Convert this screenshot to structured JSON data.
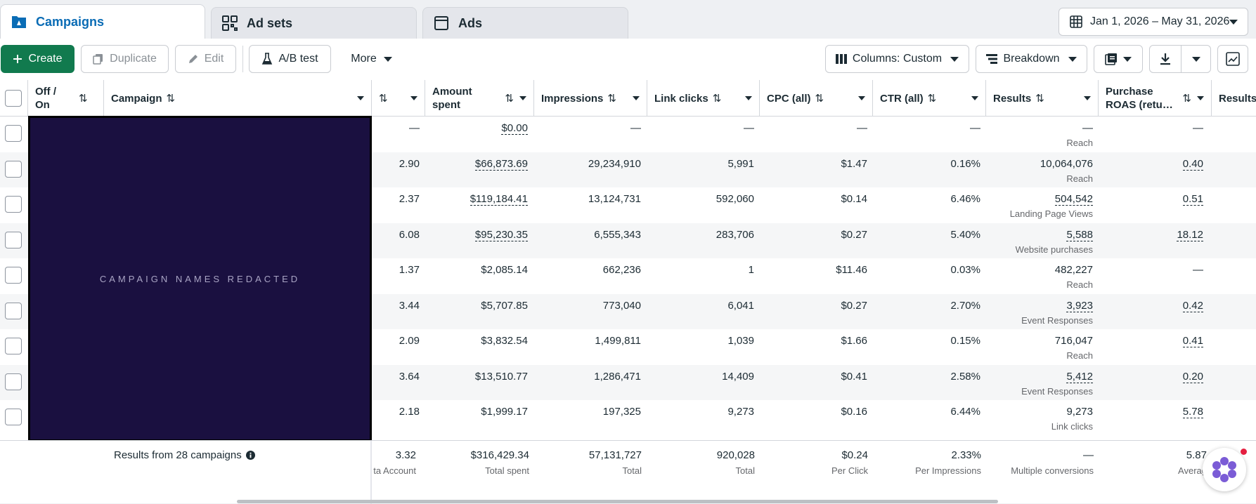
{
  "tabs": [
    {
      "label": "Campaigns",
      "icon": "folder-flag-icon",
      "active": true
    },
    {
      "label": "Ad sets",
      "icon": "grid-icon",
      "active": false
    },
    {
      "label": "Ads",
      "icon": "ad-window-icon",
      "active": false
    }
  ],
  "date_range": "Jan 1, 2026 – May 31, 2026",
  "toolbar": {
    "create": "Create",
    "duplicate": "Duplicate",
    "edit": "Edit",
    "ab_test": "A/B test",
    "more": "More",
    "columns": "Columns: Custom",
    "breakdown": "Breakdown"
  },
  "header": {
    "off_on": "Off / On",
    "campaign": "Campaign",
    "amount_spent": "Amount spent",
    "impressions": "Impressions",
    "link_clicks": "Link clicks",
    "cpc": "CPC (all)",
    "ctr": "CTR (all)",
    "results": "Results",
    "roas": "Purchase ROAS (retu…",
    "results_cut": "Results"
  },
  "redacted_label": "CAMPAIGN NAMES REDACTED",
  "rows": [
    {
      "c1": "—",
      "spent": "$0.00",
      "impr": "—",
      "clicks": "—",
      "cpc": "—",
      "ctr": "—",
      "results": "—",
      "results_sub": "Reach",
      "roas": "—",
      "last": ""
    },
    {
      "c1": "2.90",
      "spent": "$66,873.69",
      "impr": "29,234,910",
      "clicks": "5,991",
      "cpc": "$1.47",
      "ctr": "0.16%",
      "results": "10,064,076",
      "results_sub": "Reach",
      "roas": "0.40",
      "last": ""
    },
    {
      "c1": "2.37",
      "spent": "$119,184.41",
      "impr": "13,124,731",
      "clicks": "592,060",
      "cpc": "$0.14",
      "ctr": "6.46%",
      "results": "504,542",
      "results_sub": "Landing Page Views",
      "roas": "0.51",
      "last": ""
    },
    {
      "c1": "6.08",
      "spent": "$95,230.35",
      "impr": "6,555,343",
      "clicks": "283,706",
      "cpc": "$0.27",
      "ctr": "5.40%",
      "results": "5,588",
      "results_sub": "Website purchases",
      "roas": "18.12",
      "last": "$"
    },
    {
      "c1": "1.37",
      "spent": "$2,085.14",
      "impr": "662,236",
      "clicks": "1",
      "cpc": "$11.46",
      "ctr": "0.03%",
      "results": "482,227",
      "results_sub": "Reach",
      "roas": "—",
      "last": ""
    },
    {
      "c1": "3.44",
      "spent": "$5,707.85",
      "impr": "773,040",
      "clicks": "6,041",
      "cpc": "$0.27",
      "ctr": "2.70%",
      "results": "3,923",
      "results_sub": "Event Responses",
      "roas": "0.42",
      "last": ""
    },
    {
      "c1": "2.09",
      "spent": "$3,832.54",
      "impr": "1,499,811",
      "clicks": "1,039",
      "cpc": "$1.66",
      "ctr": "0.15%",
      "results": "716,047",
      "results_sub": "Reach",
      "roas": "0.41",
      "last": ""
    },
    {
      "c1": "3.64",
      "spent": "$13,510.77",
      "impr": "1,286,471",
      "clicks": "14,409",
      "cpc": "$0.41",
      "ctr": "2.58%",
      "results": "5,412",
      "results_sub": "Event Responses",
      "roas": "0.20",
      "last": ""
    },
    {
      "c1": "2.18",
      "spent": "$1,999.17",
      "impr": "197,325",
      "clicks": "9,273",
      "cpc": "$0.16",
      "ctr": "6.44%",
      "results": "9,273",
      "results_sub": "Link clicks",
      "roas": "5.78",
      "last": ""
    }
  ],
  "footer": {
    "summary": "Results from 28 campaigns",
    "c1": "3.32",
    "c1_label": "ta Account",
    "spent": "$316,429.34",
    "spent_label": "Total spent",
    "impr": "57,131,727",
    "impr_label": "Total",
    "clicks": "920,028",
    "clicks_label": "Total",
    "cpc": "$0.24",
    "cpc_label": "Per Click",
    "ctr": "2.33%",
    "ctr_label": "Per Impressions",
    "results": "—",
    "results_label": "Multiple conversions",
    "roas": "5.87",
    "roas_label": "Averag"
  }
}
